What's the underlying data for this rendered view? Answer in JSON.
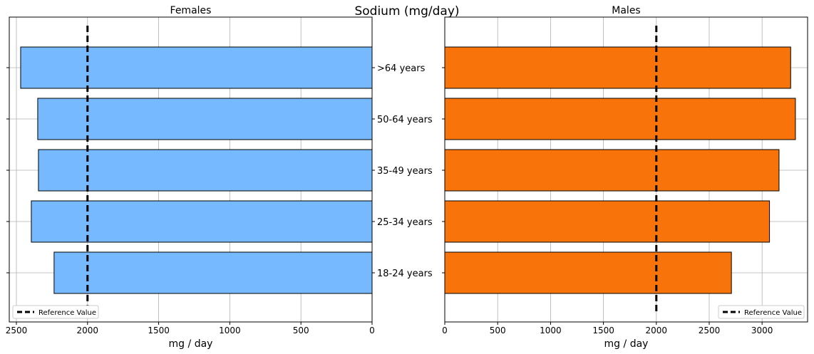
{
  "chart_data": {
    "type": "bar",
    "title": "Sodium (mg/day)",
    "categories": [
      ">64 years",
      "50-64 years",
      "35-49 years",
      "25-34 years",
      "18-24 years"
    ],
    "reference_value": 2000,
    "reference_label": "Reference Value",
    "colors": {
      "females": "#77b9fe",
      "males": "#f8730a",
      "reference": "#000000"
    },
    "grid": true,
    "panels": [
      {
        "title": "Females",
        "xlabel": "mg / day",
        "xlim": [
          2550,
          0
        ],
        "reversed": true,
        "ticks": [
          2500,
          2000,
          1500,
          1000,
          500,
          0
        ],
        "tick_labels": [
          "2500",
          "2000",
          "1500",
          "1000",
          "500",
          "0"
        ],
        "values": [
          2470,
          2350,
          2345,
          2395,
          2235
        ],
        "legend_loc": "lower left"
      },
      {
        "title": "Males",
        "xlabel": "mg / day",
        "xlim": [
          0,
          3430
        ],
        "reversed": false,
        "ticks": [
          0,
          500,
          1000,
          1500,
          2000,
          2500,
          3000
        ],
        "tick_labels": [
          "0",
          "500",
          "1000",
          "1500",
          "2000",
          "2500",
          "3000"
        ],
        "values": [
          3270,
          3315,
          3160,
          3070,
          2710
        ],
        "legend_loc": "lower right"
      }
    ]
  }
}
